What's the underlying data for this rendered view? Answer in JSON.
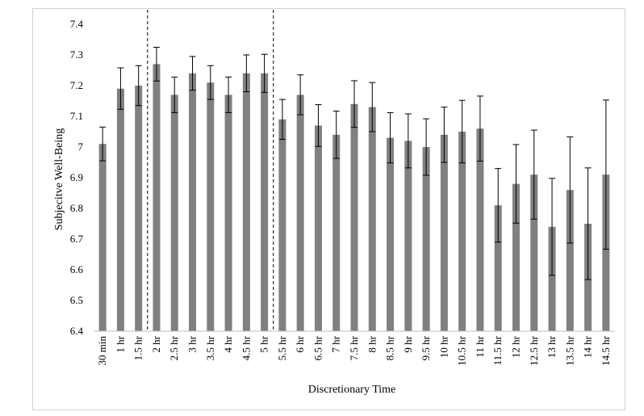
{
  "chart_data": {
    "type": "bar",
    "xlabel": "Discretionary Time",
    "ylabel": "Subjecitve Well-Being",
    "ylim": [
      6.4,
      7.4
    ],
    "yticks": [
      "6.4",
      "6.5",
      "6.6",
      "6.7",
      "6.8",
      "6.9",
      "7",
      "7.1",
      "7.2",
      "7.3",
      "7.4"
    ],
    "categories": [
      "30 min",
      "1 hr",
      "1.5 hr",
      "2 hr",
      "2.5 hr",
      "3 hr",
      "3.5 hr",
      "4 hr",
      "4.5 hr",
      "5 hr",
      "5.5 hr",
      "6 hr",
      "6.5 hr",
      "7 hr",
      "7.5 hr",
      "8 hr",
      "8.5 hr",
      "9 hr",
      "9.5 hr",
      "10 hr",
      "10.5 hr",
      "11 hr",
      "11.5 hr",
      "12 hr",
      "12.5 hr",
      "13 hr",
      "13.5 hr",
      "14 hr",
      "14.5 hr"
    ],
    "values": [
      7.01,
      7.19,
      7.2,
      7.27,
      7.17,
      7.24,
      7.21,
      7.17,
      7.24,
      7.24,
      7.09,
      7.17,
      7.07,
      7.04,
      7.14,
      7.13,
      7.03,
      7.02,
      7.0,
      7.04,
      7.05,
      7.06,
      6.81,
      6.88,
      6.91,
      6.74,
      6.86,
      6.75,
      6.91
    ],
    "error_upper": [
      7.065,
      7.258,
      7.265,
      7.325,
      7.228,
      7.295,
      7.265,
      7.228,
      7.3,
      7.302,
      7.155,
      7.235,
      7.138,
      7.117,
      7.216,
      7.21,
      7.112,
      7.108,
      7.092,
      7.13,
      7.152,
      7.166,
      6.93,
      7.008,
      7.055,
      6.898,
      7.033,
      6.932,
      7.153
    ],
    "error_lower": [
      6.955,
      7.123,
      7.135,
      7.215,
      7.112,
      7.185,
      7.155,
      7.112,
      7.18,
      7.178,
      7.025,
      7.105,
      7.002,
      6.963,
      7.064,
      7.05,
      6.948,
      6.932,
      6.908,
      6.95,
      6.948,
      6.954,
      6.69,
      6.752,
      6.765,
      6.582,
      6.687,
      6.568,
      6.667
    ],
    "reference_lines_between": [
      [
        2,
        3
      ],
      [
        9,
        10
      ]
    ],
    "grid": false,
    "legend": "none",
    "bar_color": "#808080"
  }
}
